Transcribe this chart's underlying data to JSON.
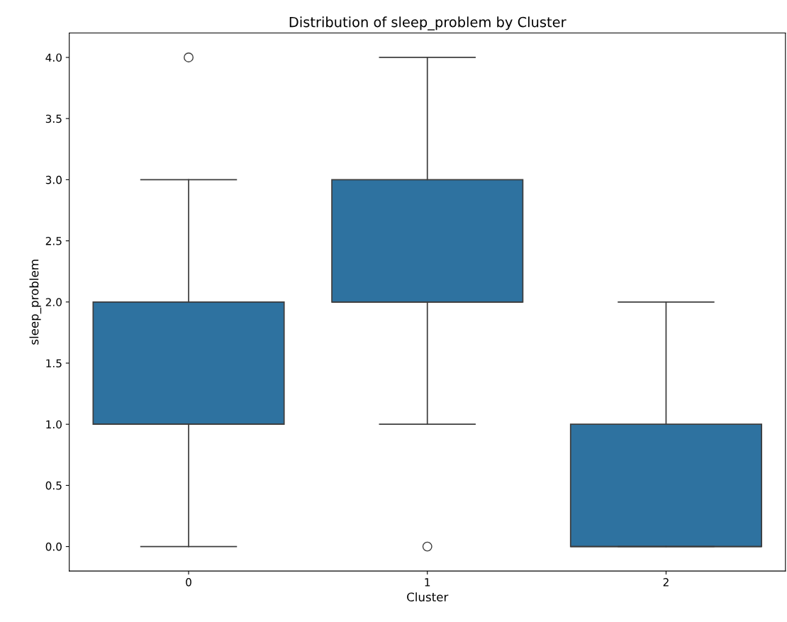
{
  "chart_data": {
    "type": "box",
    "title": "Distribution of sleep_problem by Cluster",
    "xlabel": "Cluster",
    "ylabel": "sleep_problem",
    "categories": [
      "0",
      "1",
      "2"
    ],
    "boxes": [
      {
        "low": 0.0,
        "q1": 1.0,
        "median": 1.0,
        "q3": 2.0,
        "high": 3.0,
        "outliers": [
          4.0
        ]
      },
      {
        "low": 1.0,
        "q1": 2.0,
        "median": 2.0,
        "q3": 3.0,
        "high": 4.0,
        "outliers": [
          0.0
        ]
      },
      {
        "low": 0.0,
        "q1": 0.0,
        "median": 0.0,
        "q3": 1.0,
        "high": 2.0
      }
    ],
    "color": "#2e72a0",
    "ylim": [
      -0.2,
      4.2
    ],
    "yticks": [
      {
        "value": 0,
        "label": "0.0"
      },
      {
        "value": 0.5,
        "label": "0.5"
      },
      {
        "value": 1,
        "label": "1.0"
      },
      {
        "value": 1.5,
        "label": "1.5"
      },
      {
        "value": 2,
        "label": "2.0"
      },
      {
        "value": 2.5,
        "label": "2.5"
      },
      {
        "value": 3,
        "label": "3.0"
      },
      {
        "value": 3.5,
        "label": "3.5"
      },
      {
        "value": 4,
        "label": "4.0"
      }
    ],
    "grid": false,
    "legend": false
  }
}
